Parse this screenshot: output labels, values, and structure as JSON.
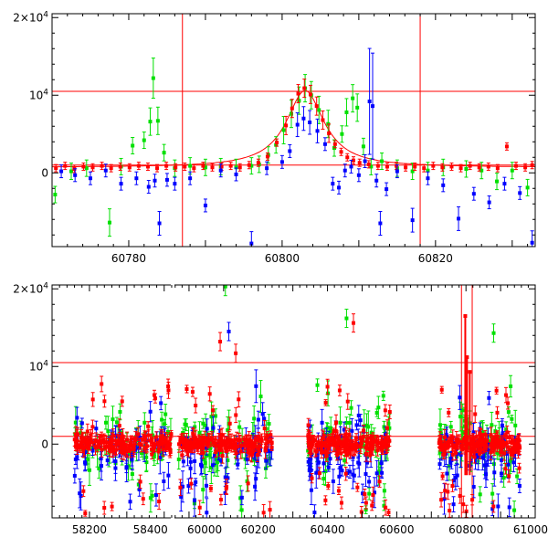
{
  "chart_data": [
    {
      "type": "scatter",
      "panel": "top",
      "title": "",
      "xlabel": "",
      "ylabel": "",
      "xlim": [
        60770,
        60833
      ],
      "ylim": [
        -9500,
        20500
      ],
      "x_ticks": [
        {
          "value": 60780,
          "label": "60780"
        },
        {
          "value": 60800,
          "label": "60800"
        },
        {
          "value": 60820,
          "label": "60820"
        }
      ],
      "y_ticks": [
        {
          "value": 0,
          "label": "0"
        },
        {
          "value": 10000,
          "label": "10⁴",
          "base": "10",
          "exp": "4"
        },
        {
          "value": 20000,
          "label": "2×10⁴",
          "base": "2×10",
          "exp": "4"
        }
      ],
      "reference_lines": {
        "vertical": [
          60787,
          60818
        ],
        "horizontal": [
          1000,
          10500
        ]
      },
      "model_curve": {
        "peak_x": 60803,
        "peak_y": 10600,
        "baseline_y": 700
      },
      "series_colors": {
        "green": "#00e000",
        "red": "#ff0000",
        "blue": "#0000ff"
      },
      "series": [
        {
          "color": "green",
          "points": [
            [
              60770.4,
              -2800
            ],
            [
              60772.5,
              200
            ],
            [
              60774.5,
              600
            ],
            [
              60777.5,
              -6400
            ],
            [
              60779,
              800
            ],
            [
              60780.5,
              3500
            ],
            [
              60782,
              4200
            ],
            [
              60782.8,
              6600
            ],
            [
              60783.2,
              12200
            ],
            [
              60783.8,
              6700
            ],
            [
              60784.6,
              2600
            ],
            [
              60786,
              600
            ],
            [
              60788,
              900
            ],
            [
              60790,
              700
            ],
            [
              60792,
              800
            ],
            [
              60794,
              700
            ],
            [
              60796,
              900
            ],
            [
              60797,
              1100
            ],
            [
              60798.2,
              2300
            ],
            [
              60799.2,
              3600
            ],
            [
              60800.2,
              5500
            ],
            [
              60801.2,
              7600
            ],
            [
              60802.2,
              9300
            ],
            [
              60803,
              10900
            ],
            [
              60803.8,
              10000
            ],
            [
              60804.8,
              8100
            ],
            [
              60806,
              6300
            ],
            [
              60806.8,
              3200
            ],
            [
              60807.8,
              5000
            ],
            [
              60808.4,
              7800
            ],
            [
              60809.2,
              9600
            ],
            [
              60809.8,
              8400
            ],
            [
              60810.6,
              3400
            ],
            [
              60811.6,
              800
            ],
            [
              60813,
              1500
            ],
            [
              60815,
              600
            ],
            [
              60817,
              200
            ],
            [
              60819,
              300
            ],
            [
              60821,
              700
            ],
            [
              60824,
              500
            ],
            [
              60826,
              300
            ],
            [
              60828,
              -1100
            ],
            [
              60830,
              300
            ],
            [
              60832,
              -1900
            ]
          ]
        },
        {
          "color": "red",
          "points": [
            [
              60770.5,
              600
            ],
            [
              60771.7,
              900
            ],
            [
              60772.9,
              500
            ],
            [
              60774.1,
              800
            ],
            [
              60775.3,
              700
            ],
            [
              60776.5,
              900
            ],
            [
              60777.7,
              600
            ],
            [
              60778.9,
              800
            ],
            [
              60780.1,
              700
            ],
            [
              60781.3,
              900
            ],
            [
              60782.5,
              800
            ],
            [
              60783.7,
              600
            ],
            [
              60784.9,
              900
            ],
            [
              60786.1,
              700
            ],
            [
              60787.3,
              800
            ],
            [
              60788.5,
              600
            ],
            [
              60789.7,
              900
            ],
            [
              60790.9,
              700
            ],
            [
              60792.1,
              800
            ],
            [
              60793.3,
              900
            ],
            [
              60794.5,
              700
            ],
            [
              60795.7,
              1000
            ],
            [
              60796.9,
              1300
            ],
            [
              60798.1,
              2100
            ],
            [
              60799.3,
              3900
            ],
            [
              60800.5,
              6100
            ],
            [
              60801.3,
              8300
            ],
            [
              60802.1,
              10200
            ],
            [
              60802.9,
              10900
            ],
            [
              60803.7,
              10100
            ],
            [
              60804.5,
              8600
            ],
            [
              60805.3,
              6800
            ],
            [
              60806.1,
              5100
            ],
            [
              60806.9,
              3700
            ],
            [
              60807.7,
              2700
            ],
            [
              60808.5,
              2000
            ],
            [
              60809.3,
              1600
            ],
            [
              60810.1,
              1300
            ],
            [
              60811.3,
              1100
            ],
            [
              60812.5,
              900
            ],
            [
              60813.7,
              800
            ],
            [
              60814.9,
              900
            ],
            [
              60816.1,
              700
            ],
            [
              60817.3,
              800
            ],
            [
              60818.5,
              600
            ],
            [
              60819.7,
              900
            ],
            [
              60820.9,
              700
            ],
            [
              60822.1,
              800
            ],
            [
              60823.3,
              600
            ],
            [
              60824.5,
              900
            ],
            [
              60825.7,
              700
            ],
            [
              60826.9,
              800
            ],
            [
              60828.1,
              600
            ],
            [
              60829.3,
              3400
            ],
            [
              60830.5,
              900
            ],
            [
              60831.7,
              700
            ],
            [
              60832.6,
              1000
            ]
          ]
        },
        {
          "color": "blue",
          "points": [
            [
              60771.2,
              200
            ],
            [
              60773,
              -300
            ],
            [
              60775,
              -700
            ],
            [
              60777,
              300
            ],
            [
              60779,
              -1400
            ],
            [
              60781,
              -700
            ],
            [
              60782.6,
              -1800
            ],
            [
              60783.4,
              -1000
            ],
            [
              60784,
              -6500
            ],
            [
              60785,
              -900
            ],
            [
              60786,
              -1400
            ],
            [
              60788,
              -700
            ],
            [
              60790,
              -4200
            ],
            [
              60792,
              300
            ],
            [
              60794,
              -200
            ],
            [
              60796,
              -9100
            ],
            [
              60798,
              600
            ],
            [
              60800,
              1400
            ],
            [
              60801,
              2800
            ],
            [
              60802,
              6200
            ],
            [
              60802.8,
              7000
            ],
            [
              60803.6,
              6500
            ],
            [
              60804.6,
              5400
            ],
            [
              60805.6,
              3700
            ],
            [
              60806.6,
              -1400
            ],
            [
              60807.4,
              -1900
            ],
            [
              60808.2,
              300
            ],
            [
              60809,
              800
            ],
            [
              60810,
              -300
            ],
            [
              60810.8,
              1500
            ],
            [
              60811.4,
              9200
            ],
            [
              60811.8,
              8600
            ],
            [
              60812.3,
              -1000
            ],
            [
              60812.8,
              -6500
            ],
            [
              60813.6,
              -2100
            ],
            [
              60815,
              200
            ],
            [
              60817,
              -6100
            ],
            [
              60819,
              -700
            ],
            [
              60821,
              -1600
            ],
            [
              60823,
              -5900
            ],
            [
              60825,
              -2700
            ],
            [
              60827,
              -3800
            ],
            [
              60829,
              -1400
            ],
            [
              60831,
              -2600
            ],
            [
              60832.6,
              -9000
            ]
          ]
        }
      ]
    },
    {
      "type": "scatter",
      "panel": "bottom",
      "title": "",
      "xlabel": "",
      "ylabel": "",
      "xlim": [
        58100,
        61000
      ],
      "ylim": [
        -9500,
        20500
      ],
      "x_ticks": [
        {
          "value": 58200,
          "label": "58200"
        },
        {
          "value": 58400,
          "label": "58400"
        },
        {
          "value": 60000,
          "label": "60000"
        },
        {
          "value": 60200,
          "label": "60200"
        },
        {
          "value": 60400,
          "label": "60400"
        },
        {
          "value": 60600,
          "label": "60600"
        },
        {
          "value": 60800,
          "label": "60800"
        },
        {
          "value": 61000,
          "label": "61000"
        }
      ],
      "x_axis_break": {
        "from": 58425,
        "to": 59950
      },
      "y_ticks": [
        {
          "value": 0,
          "label": "0"
        },
        {
          "value": 10000,
          "label": "10⁴",
          "base": "10",
          "exp": "4"
        },
        {
          "value": 20000,
          "label": "2×10⁴",
          "base": "2×10",
          "exp": "4"
        }
      ],
      "reference_lines": {
        "vertical": [
          60787,
          60818
        ],
        "horizontal": [
          1000,
          10500
        ]
      },
      "season_ranges": [
        [
          58160,
          58420
        ],
        [
          59970,
          60240
        ],
        [
          60340,
          60580
        ],
        [
          60720,
          60960
        ]
      ],
      "spikes": [
        {
          "x": 60798,
          "y": 16500
        },
        {
          "x": 60803,
          "y": 11200
        },
        {
          "x": 60811,
          "y": 9300
        }
      ],
      "outliers": [
        {
          "color": "green",
          "x": 60105,
          "y": 20300
        },
        {
          "color": "blue",
          "x": 60115,
          "y": 14500
        },
        {
          "color": "red",
          "x": 60090,
          "y": 13200
        },
        {
          "color": "red",
          "x": 60135,
          "y": 11700
        },
        {
          "color": "green",
          "x": 60455,
          "y": 16200
        },
        {
          "color": "red",
          "x": 60475,
          "y": 15600
        },
        {
          "color": "green",
          "x": 60880,
          "y": 14300
        }
      ],
      "series_colors": {
        "green": "#00e000",
        "red": "#ff0000",
        "blue": "#0000ff"
      }
    }
  ]
}
